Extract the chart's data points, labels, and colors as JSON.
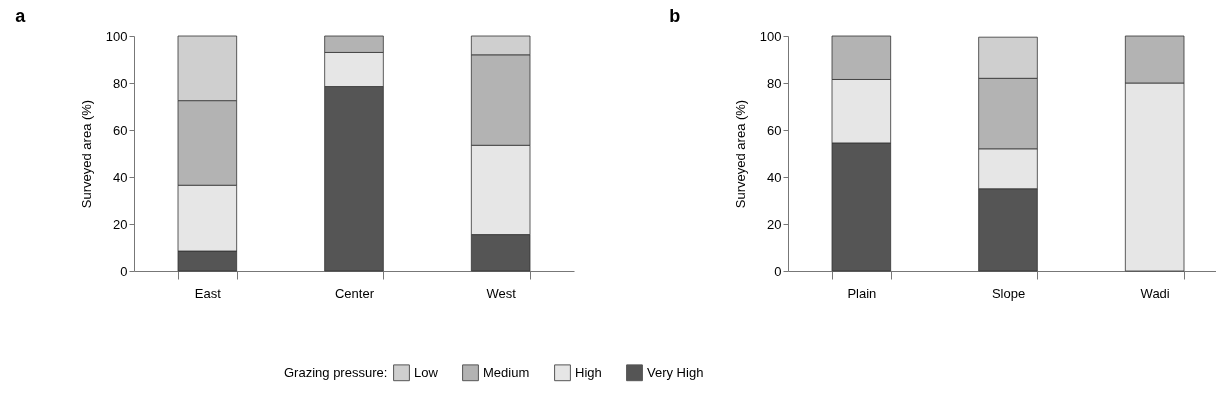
{
  "chart_data": [
    {
      "type": "bar",
      "title": "a",
      "ylabel": "Surveyed area (%)",
      "categories": [
        "East",
        "Center",
        "West"
      ],
      "stacked": true,
      "ylim": [
        0,
        100
      ],
      "yticks": [
        0,
        20,
        40,
        60,
        80,
        100
      ],
      "legend": "bottom",
      "legend_title": "Grazing pressure:",
      "series": [
        {
          "name": "Very High",
          "color": "#555555",
          "values": [
            8.5,
            78.5,
            15.5
          ]
        },
        {
          "name": "High",
          "color": "#e6e6e6",
          "values": [
            28,
            14.5,
            38
          ]
        },
        {
          "name": "Medium",
          "color": "#b3b3b3",
          "values": [
            36,
            7,
            38.5
          ]
        },
        {
          "name": "Low",
          "color": "#cfcfcf",
          "values": [
            27.5,
            0,
            8
          ]
        }
      ]
    },
    {
      "type": "bar",
      "title": "b",
      "ylabel": "Surveyed area (%)",
      "categories": [
        "Plain",
        "Slope",
        "Wadi"
      ],
      "stacked": true,
      "ylim": [
        0,
        100
      ],
      "yticks": [
        0,
        20,
        40,
        60,
        80,
        100
      ],
      "legend": "bottom",
      "series": [
        {
          "name": "Very High",
          "color": "#555555",
          "values": [
            54.5,
            35,
            0
          ]
        },
        {
          "name": "High",
          "color": "#e6e6e6",
          "values": [
            27,
            17,
            80
          ]
        },
        {
          "name": "Medium",
          "color": "#b3b3b3",
          "values": [
            18.5,
            30,
            20
          ]
        },
        {
          "name": "Low",
          "color": "#cfcfcf",
          "values": [
            0,
            17.5,
            0
          ]
        }
      ]
    }
  ]
}
